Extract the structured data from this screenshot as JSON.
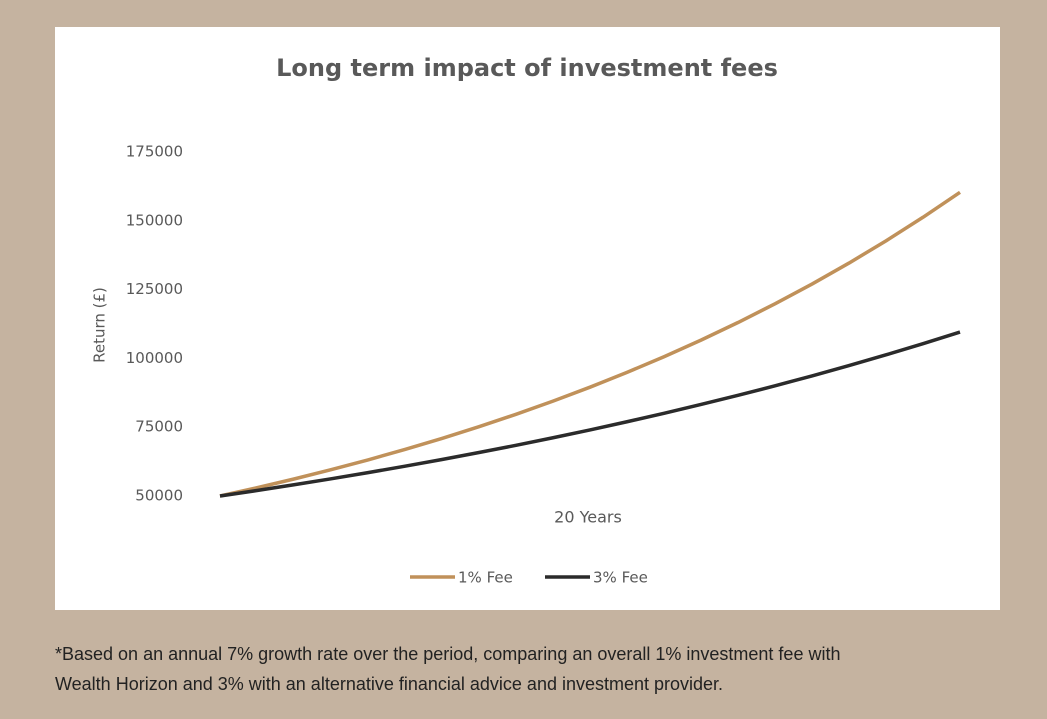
{
  "chart_data": {
    "type": "line",
    "title": "Long term impact of investment fees",
    "x_label": "20 Years",
    "y_label": "Return (£)",
    "x": [
      0,
      1,
      2,
      3,
      4,
      5,
      6,
      7,
      8,
      9,
      10,
      11,
      12,
      13,
      14,
      15,
      16,
      17,
      18,
      19,
      20
    ],
    "xlim": [
      0,
      20
    ],
    "ylim": [
      50000,
      175000
    ],
    "yticks": [
      50000,
      75000,
      100000,
      125000,
      150000,
      175000
    ],
    "grid": false,
    "legend": "bottom",
    "series": [
      {
        "name": "1% Fee",
        "color": "#c0915a",
        "values": [
          50000,
          53000,
          56180,
          59551,
          63124,
          66911,
          70926,
          75182,
          79692,
          84474,
          89542,
          94915,
          100610,
          106646,
          113045,
          119828,
          127018,
          134639,
          142717,
          151280,
          160357
        ]
      },
      {
        "name": "3% Fee",
        "color": "#2b2b2b",
        "values": [
          50000,
          52000,
          54080,
          56243,
          58493,
          60833,
          63266,
          65797,
          68428,
          71166,
          74012,
          76973,
          80052,
          83254,
          86584,
          90047,
          93649,
          97395,
          101291,
          105342,
          109556
        ]
      }
    ]
  },
  "footnote": [
    "*Based on an annual 7% growth rate over the period, comparing an overall 1% investment fee with",
    "Wealth Horizon and 3% with an alternative financial advice and investment provider."
  ]
}
